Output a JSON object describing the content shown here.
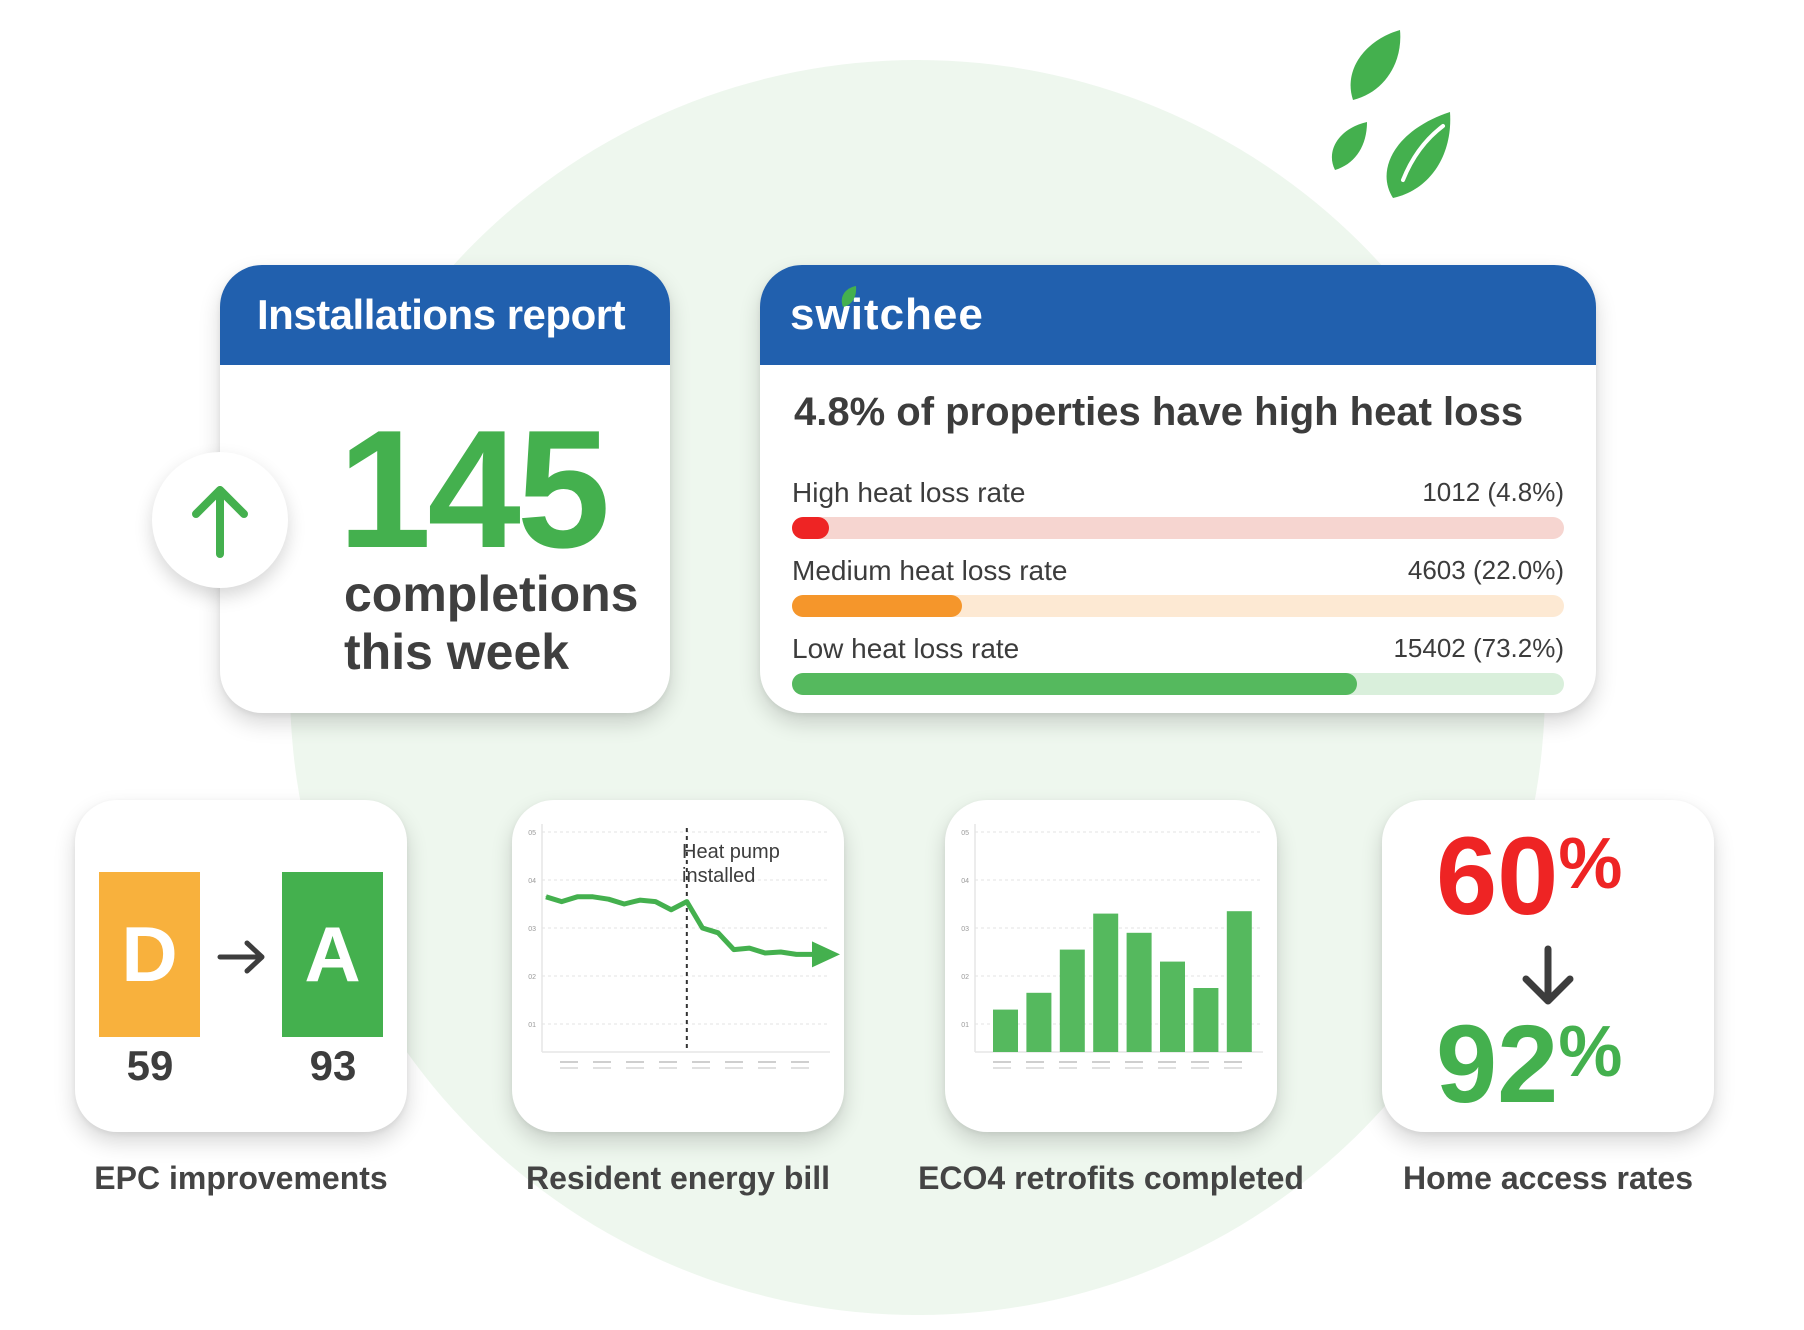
{
  "colors": {
    "brand_blue": "#2160ae",
    "green": "#44b04e",
    "orange": "#f5962b",
    "red": "#ee2424",
    "epc_d": "#f8b13d",
    "epc_a": "#44b04e"
  },
  "installations": {
    "title": "Installations report",
    "count": "145",
    "line1": "completions",
    "line2": "this week",
    "trend_icon": "arrow-up-icon"
  },
  "switchee": {
    "brand": "switchee",
    "heading": "4.8% of properties have high heat loss",
    "rates": [
      {
        "label": "High heat loss rate",
        "value": "1012 (4.8%)",
        "fraction": 0.048,
        "fill": "#ee2424",
        "track": "#f6d5d0"
      },
      {
        "label": "Medium heat loss rate",
        "value": "4603 (22.0%)",
        "fraction": 0.22,
        "fill": "#f5962b",
        "track": "#fde9d3"
      },
      {
        "label": "Low heat loss rate",
        "value": "15402 (73.2%)",
        "fraction": 0.732,
        "fill": "#55b95e",
        "track": "#d9efdb"
      }
    ]
  },
  "epc": {
    "from_letter": "D",
    "to_letter": "A",
    "from_score": "59",
    "to_score": "93",
    "caption": "EPC improvements"
  },
  "bill": {
    "annotation_line1": "Heat pump",
    "annotation_line2": "installed",
    "caption": "Resident energy bill",
    "y_ticks": [
      "05",
      "04",
      "03",
      "02",
      "01"
    ]
  },
  "eco4": {
    "caption": "ECO4 retrofits completed",
    "y_ticks": [
      "05",
      "04",
      "03",
      "02",
      "01"
    ]
  },
  "access": {
    "before": "60",
    "after": "92",
    "sign": "%",
    "caption": "Home access rates"
  },
  "chart_data": [
    {
      "type": "line",
      "y_ticks": [
        "01",
        "02",
        "03",
        "04",
        "05"
      ],
      "ylim": [
        0.5,
        5
      ],
      "x": [
        0,
        1,
        2,
        3,
        4,
        5,
        6,
        7,
        8,
        9,
        10,
        11,
        12,
        13,
        14,
        15,
        16,
        17
      ],
      "values": [
        3.65,
        3.55,
        3.65,
        3.65,
        3.6,
        3.5,
        3.58,
        3.55,
        3.38,
        3.55,
        3.0,
        2.9,
        2.55,
        2.58,
        2.48,
        2.5,
        2.45,
        2.45
      ],
      "annotation": {
        "at_x": 9,
        "text": "Heat pump installed"
      }
    },
    {
      "type": "bar",
      "y_ticks": [
        "01",
        "02",
        "03",
        "04",
        "05"
      ],
      "ylim": [
        0.5,
        5
      ],
      "values": [
        1.3,
        1.65,
        2.55,
        3.3,
        2.9,
        2.3,
        1.75,
        3.35
      ]
    }
  ]
}
